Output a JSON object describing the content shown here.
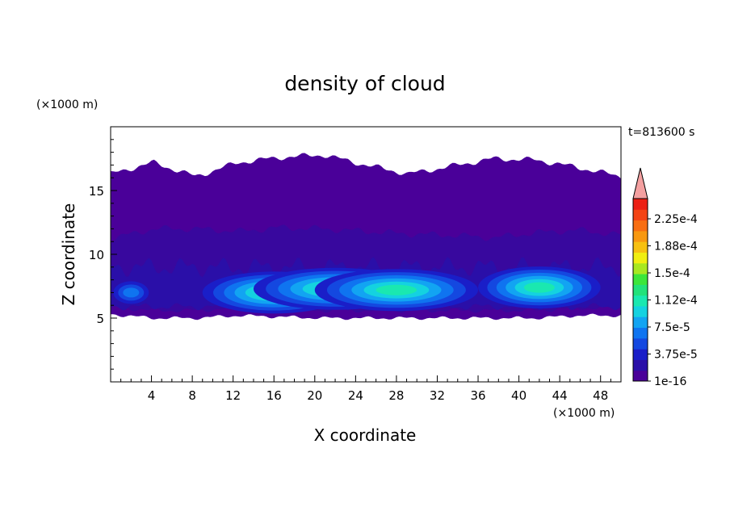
{
  "chart_data": {
    "type": "heatmap",
    "title": "density of cloud",
    "xlabel": "X coordinate",
    "ylabel": "Z coordinate",
    "x_unit": "(×1000 m)",
    "y_unit": "(×1000 m)",
    "time_label": "t=813600 s",
    "xlim": [
      0,
      50
    ],
    "ylim": [
      0,
      20
    ],
    "x_ticks": [
      4,
      8,
      12,
      16,
      20,
      24,
      28,
      32,
      36,
      40,
      44,
      48
    ],
    "y_ticks": [
      5,
      10,
      15
    ],
    "colorbar": {
      "labels": [
        "1e-16",
        "3.75e-5",
        "7.5e-5",
        "1.12e-4",
        "1.5e-4",
        "1.88e-4",
        "2.25e-4"
      ],
      "colors": [
        "#4a0099",
        "#2a0fa8",
        "#1a1ec8",
        "#1448e0",
        "#0f74f0",
        "#12a4f2",
        "#14d2e0",
        "#1ae8b0",
        "#22e27a",
        "#3ce63a",
        "#a8e820",
        "#f0ee10",
        "#f7c010",
        "#f89810",
        "#f86e12",
        "#f44414",
        "#ec2014"
      ],
      "extend_color": "#f4a0a0"
    },
    "cloud": {
      "top_km": [
        16.3,
        17.2,
        16.1,
        17.2,
        17.6,
        17.8,
        17.0,
        16.3,
        16.9,
        17.5,
        17.4,
        16.8,
        16.1
      ],
      "base_km": [
        5.3,
        5.0,
        5.0,
        5.2,
        5.1,
        5.0,
        5.0,
        5.0,
        5.0,
        5.0,
        5.0,
        5.2,
        5.2
      ],
      "upper_layer_km": [
        11.2,
        12.0,
        12.0,
        11.8,
        12.1,
        12.0,
        11.8,
        11.6,
        11.5,
        11.3,
        11.7,
        11.9,
        11.5
      ],
      "dense_core_max": 0.00013,
      "dense_core_centers_km": [
        [
          16,
          7.0
        ],
        [
          22,
          7.3
        ],
        [
          28,
          7.2
        ],
        [
          42,
          7.4
        ]
      ]
    },
    "grid": false
  }
}
